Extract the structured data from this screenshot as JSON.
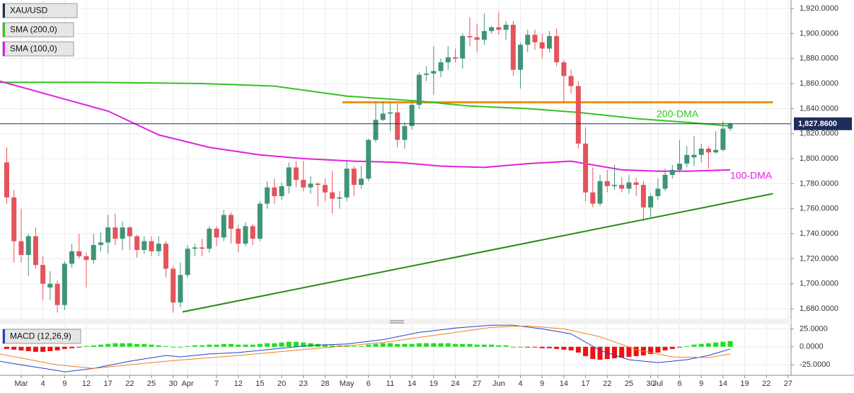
{
  "chart_data": {
    "type": "candlestick",
    "title": "XAU/USD",
    "up_color": "#3f9477",
    "down_color": "#e5535b",
    "xlim": [
      -2.93,
      106.4
    ],
    "ylim": [
      1672.1,
      1926.8
    ],
    "yticks": [
      {
        "value": 1680,
        "label": "1,680.0000"
      },
      {
        "value": 1700,
        "label": "1,700.0000"
      },
      {
        "value": 1720,
        "label": "1,720.0000"
      },
      {
        "value": 1740,
        "label": "1,740.0000"
      },
      {
        "value": 1760,
        "label": "1,760.0000"
      },
      {
        "value": 1780,
        "label": "1,780.0000"
      },
      {
        "value": 1800,
        "label": "1,800.0000"
      },
      {
        "value": 1820,
        "label": "1,820.0000"
      },
      {
        "value": 1840,
        "label": "1,840.0000"
      },
      {
        "value": 1860,
        "label": "1,860.0000"
      },
      {
        "value": 1880,
        "label": "1,880.0000"
      },
      {
        "value": 1900,
        "label": "1,900.0000"
      },
      {
        "value": 1920,
        "label": "1,920.0000"
      }
    ],
    "xticks": [
      {
        "value": 0,
        "label": "Mar"
      },
      {
        "value": 3,
        "label": "4"
      },
      {
        "value": 6,
        "label": "9"
      },
      {
        "value": 9,
        "label": "12"
      },
      {
        "value": 12,
        "label": "17"
      },
      {
        "value": 15,
        "label": "22"
      },
      {
        "value": 18,
        "label": "25"
      },
      {
        "value": 21,
        "label": "30"
      },
      {
        "value": 23,
        "label": "Apr"
      },
      {
        "value": 27,
        "label": "7"
      },
      {
        "value": 30,
        "label": "12"
      },
      {
        "value": 33,
        "label": "15"
      },
      {
        "value": 36,
        "label": "20"
      },
      {
        "value": 39,
        "label": "23"
      },
      {
        "value": 42,
        "label": "28"
      },
      {
        "value": 45,
        "label": "May"
      },
      {
        "value": 48,
        "label": "6"
      },
      {
        "value": 51,
        "label": "11"
      },
      {
        "value": 54,
        "label": "14"
      },
      {
        "value": 57,
        "label": "19"
      },
      {
        "value": 60,
        "label": "24"
      },
      {
        "value": 63,
        "label": "27"
      },
      {
        "value": 66,
        "label": "Jun"
      },
      {
        "value": 69,
        "label": "4"
      },
      {
        "value": 72,
        "label": "9"
      },
      {
        "value": 75,
        "label": "14"
      },
      {
        "value": 78,
        "label": "17"
      },
      {
        "value": 81,
        "label": "22"
      },
      {
        "value": 84,
        "label": "25"
      },
      {
        "value": 87,
        "label": "30"
      },
      {
        "value": 88,
        "label": "Jul"
      },
      {
        "value": 91,
        "label": "6"
      },
      {
        "value": 94,
        "label": "9"
      },
      {
        "value": 97,
        "label": "14"
      },
      {
        "value": 100,
        "label": "19"
      },
      {
        "value": 103,
        "label": "22"
      },
      {
        "value": 106,
        "label": "27"
      }
    ],
    "grid": true,
    "x": [
      -2,
      -1,
      0,
      1,
      2,
      3,
      4,
      5,
      6,
      7,
      8,
      9,
      10,
      11,
      12,
      13,
      14,
      15,
      16,
      17,
      18,
      19,
      20,
      21,
      22,
      23,
      24,
      25,
      26,
      27,
      28,
      29,
      30,
      31,
      32,
      33,
      34,
      35,
      36,
      37,
      38,
      39,
      40,
      41,
      42,
      43,
      44,
      45,
      46,
      47,
      48,
      49,
      50,
      51,
      52,
      53,
      54,
      55,
      56,
      57,
      58,
      59,
      60,
      61,
      62,
      63,
      64,
      65,
      66,
      67,
      68,
      69,
      70,
      71,
      72,
      73,
      74,
      75,
      76,
      77,
      78,
      79,
      80,
      81,
      82,
      83,
      84,
      85,
      86,
      87,
      88,
      89,
      90,
      91,
      92,
      93,
      94,
      95,
      96,
      97,
      98
    ],
    "ohlc": [
      [
        1797,
        1809,
        1764,
        1769
      ],
      [
        1769,
        1775,
        1717,
        1734
      ],
      [
        1734,
        1760,
        1717,
        1723
      ],
      [
        1723,
        1740,
        1706,
        1738
      ],
      [
        1738,
        1745,
        1712,
        1715
      ],
      [
        1715,
        1722,
        1687,
        1700
      ],
      [
        1697,
        1710,
        1687,
        1700
      ],
      [
        1700,
        1703,
        1677,
        1683
      ],
      [
        1683,
        1718,
        1679,
        1716
      ],
      [
        1716,
        1732,
        1713,
        1726
      ],
      [
        1726,
        1740,
        1720,
        1722
      ],
      [
        1722,
        1725,
        1697,
        1719
      ],
      [
        1719,
        1740,
        1716,
        1731
      ],
      [
        1731,
        1741,
        1726,
        1733
      ],
      [
        1733,
        1755,
        1724,
        1745
      ],
      [
        1745,
        1756,
        1731,
        1736
      ],
      [
        1736,
        1750,
        1727,
        1745
      ],
      [
        1745,
        1746,
        1727,
        1738
      ],
      [
        1738,
        1739,
        1721,
        1727
      ],
      [
        1727,
        1738,
        1724,
        1734
      ],
      [
        1734,
        1738,
        1722,
        1726
      ],
      [
        1726,
        1738,
        1722,
        1732
      ],
      [
        1732,
        1734,
        1705,
        1712
      ],
      [
        1712,
        1714,
        1677,
        1685
      ],
      [
        1685,
        1717,
        1681,
        1707
      ],
      [
        1707,
        1731,
        1705,
        1728
      ],
      [
        1728,
        1732,
        1722,
        1729
      ],
      [
        1729,
        1736,
        1722,
        1728
      ],
      [
        1728,
        1746,
        1725,
        1744
      ],
      [
        1744,
        1746,
        1730,
        1737
      ],
      [
        1737,
        1759,
        1734,
        1755
      ],
      [
        1755,
        1757,
        1732,
        1744
      ],
      [
        1744,
        1747,
        1725,
        1732
      ],
      [
        1732,
        1749,
        1730,
        1746
      ],
      [
        1746,
        1748,
        1731,
        1736
      ],
      [
        1736,
        1766,
        1734,
        1764
      ],
      [
        1764,
        1782,
        1760,
        1777
      ],
      [
        1777,
        1784,
        1764,
        1770
      ],
      [
        1770,
        1781,
        1767,
        1778
      ],
      [
        1778,
        1797,
        1772,
        1793
      ],
      [
        1793,
        1798,
        1777,
        1783
      ],
      [
        1783,
        1798,
        1774,
        1777
      ],
      [
        1777,
        1786,
        1772,
        1780
      ],
      [
        1780,
        1781,
        1762,
        1779
      ],
      [
        1779,
        1784,
        1766,
        1773
      ],
      [
        1773,
        1790,
        1756,
        1768
      ],
      [
        1768,
        1774,
        1760,
        1769
      ],
      [
        1769,
        1798,
        1766,
        1792
      ],
      [
        1792,
        1794,
        1770,
        1779
      ],
      [
        1779,
        1794,
        1776,
        1784
      ],
      [
        1784,
        1816,
        1782,
        1815
      ],
      [
        1815,
        1845,
        1813,
        1831
      ],
      [
        1831,
        1846,
        1830,
        1836
      ],
      [
        1836,
        1845,
        1822,
        1837
      ],
      [
        1837,
        1844,
        1809,
        1815
      ],
      [
        1815,
        1829,
        1808,
        1826
      ],
      [
        1826,
        1845,
        1823,
        1843
      ],
      [
        1843,
        1869,
        1840,
        1867
      ],
      [
        1867,
        1874,
        1862,
        1868
      ],
      [
        1868,
        1890,
        1851,
        1870
      ],
      [
        1870,
        1880,
        1865,
        1877
      ],
      [
        1877,
        1890,
        1871,
        1881
      ],
      [
        1881,
        1888,
        1877,
        1880
      ],
      [
        1880,
        1900,
        1872,
        1898
      ],
      [
        1898,
        1913,
        1890,
        1897
      ],
      [
        1897,
        1908,
        1885,
        1895
      ],
      [
        1895,
        1916,
        1891,
        1902
      ],
      [
        1902,
        1906,
        1900,
        1905
      ],
      [
        1905,
        1917,
        1899,
        1903
      ],
      [
        1903,
        1910,
        1895,
        1907
      ],
      [
        1907,
        1910,
        1866,
        1871
      ],
      [
        1871,
        1893,
        1856,
        1891
      ],
      [
        1891,
        1903,
        1885,
        1899
      ],
      [
        1899,
        1903,
        1887,
        1893
      ],
      [
        1893,
        1900,
        1880,
        1888
      ],
      [
        1888,
        1902,
        1885,
        1898
      ],
      [
        1898,
        1904,
        1874,
        1877
      ],
      [
        1877,
        1879,
        1845,
        1866
      ],
      [
        1866,
        1871,
        1852,
        1858
      ],
      [
        1858,
        1862,
        1808,
        1812
      ],
      [
        1812,
        1825,
        1766,
        1773
      ],
      [
        1773,
        1793,
        1761,
        1764
      ],
      [
        1764,
        1787,
        1762,
        1782
      ],
      [
        1782,
        1791,
        1773,
        1778
      ],
      [
        1778,
        1795,
        1775,
        1779
      ],
      [
        1779,
        1785,
        1773,
        1776
      ],
      [
        1776,
        1787,
        1772,
        1781
      ],
      [
        1781,
        1785,
        1770,
        1779
      ],
      [
        1779,
        1782,
        1750,
        1761
      ],
      [
        1761,
        1772,
        1752,
        1770
      ],
      [
        1770,
        1784,
        1767,
        1776
      ],
      [
        1776,
        1792,
        1774,
        1787
      ],
      [
        1787,
        1795,
        1784,
        1791
      ],
      [
        1791,
        1815,
        1789,
        1796
      ],
      [
        1796,
        1810,
        1793,
        1803
      ],
      [
        1801,
        1818,
        1794,
        1803
      ],
      [
        1803,
        1812,
        1797,
        1808
      ],
      [
        1808,
        1810,
        1792,
        1805
      ],
      [
        1805,
        1822,
        1804,
        1807
      ],
      [
        1807,
        1830,
        1806,
        1824
      ],
      [
        1824,
        1829,
        1822,
        1827.86
      ]
    ],
    "last_label": "1,827.8600",
    "last_color": "#1f2d5a",
    "lines": [
      {
        "name": "SMA (200,0)",
        "color": "#33c41f",
        "x": [
          -3,
          10,
          25,
          35,
          45,
          55,
          62,
          70,
          77,
          85,
          92,
          98
        ],
        "values": [
          1861,
          1861,
          1860,
          1858,
          1850,
          1846,
          1842,
          1840,
          1837,
          1832,
          1829,
          1826
        ]
      },
      {
        "name": "SMA (100,0)",
        "color": "#e020e0",
        "x": [
          -3,
          7,
          12,
          19,
          26,
          33,
          39,
          46,
          52,
          58,
          64,
          70,
          76,
          83,
          88,
          92,
          98
        ],
        "values": [
          1862,
          1846,
          1838,
          1819,
          1809,
          1803,
          1800,
          1798,
          1797,
          1794,
          1793,
          1796,
          1798,
          1791,
          1790,
          1790,
          1791
        ]
      }
    ],
    "trendlines": [
      {
        "color": "#f0900a",
        "x": [
          44.4,
          103.9
        ],
        "values": [
          1845,
          1845
        ]
      },
      {
        "color": "#2a8a0e",
        "x": [
          22.3,
          103.9
        ],
        "values": [
          1677.5,
          1772
        ]
      }
    ],
    "annotations": [
      {
        "text": "200-DMA",
        "color": "#33c41f"
      },
      {
        "text": "100-DMA",
        "color": "#e020e0"
      }
    ],
    "macd": {
      "title": "MACD (12,26,9)",
      "ylim": [
        -39.6,
        31.25
      ],
      "yticks": [
        {
          "value": 25,
          "label": "25.0000"
        },
        {
          "value": 0,
          "label": "0.0000"
        },
        {
          "value": -25,
          "label": "-25.0000"
        }
      ],
      "up_color": "#1fe01f",
      "down_color": "#ee1111",
      "histogram": [
        -3,
        -4,
        -5,
        -6,
        -7,
        -7,
        -6,
        -5,
        -3,
        -2,
        -1,
        1,
        2,
        3,
        4,
        5,
        5,
        5,
        4,
        4,
        3,
        2,
        1,
        0,
        0,
        1,
        2,
        2,
        3,
        3,
        4,
        4,
        3,
        3,
        3,
        4,
        5,
        5,
        6,
        7,
        7,
        6,
        5,
        4,
        3,
        2,
        2,
        2,
        1,
        1,
        3,
        4,
        5,
        5,
        4,
        4,
        4,
        5,
        5,
        5,
        5,
        5,
        4,
        4,
        4,
        3,
        3,
        3,
        2,
        2,
        0,
        0,
        -1,
        -1,
        -2,
        -2,
        -3,
        -4,
        -5,
        -8,
        -13,
        -17,
        -18,
        -17,
        -16,
        -15,
        -14,
        -13,
        -12,
        -10,
        -8,
        -5,
        -3,
        -1,
        1,
        3,
        4,
        5,
        6,
        7,
        8
      ],
      "lines": [
        {
          "color": "#2340c8",
          "x": [
            -3,
            0,
            5,
            6,
            10,
            15,
            20,
            22,
            26,
            30,
            35,
            40,
            45,
            50,
            55,
            60,
            65,
            68,
            72,
            76,
            80,
            84,
            88,
            92,
            95,
            98
          ],
          "values": [
            -20,
            -25,
            -33,
            -35,
            -30,
            -20,
            -12,
            -14,
            -10,
            -8,
            -3,
            2,
            4,
            10,
            20,
            26,
            30,
            30,
            25,
            18,
            -5,
            -18,
            -22,
            -18,
            -12,
            -3
          ]
        },
        {
          "color": "#f08020",
          "x": [
            -3,
            5,
            10,
            20,
            30,
            40,
            50,
            55,
            60,
            65,
            70,
            75,
            80,
            85,
            90,
            95,
            98
          ],
          "values": [
            -10,
            -25,
            -30,
            -20,
            -12,
            -3,
            6,
            13,
            20,
            27,
            29,
            25,
            14,
            -4,
            -14,
            -15,
            -10
          ]
        }
      ]
    }
  }
}
